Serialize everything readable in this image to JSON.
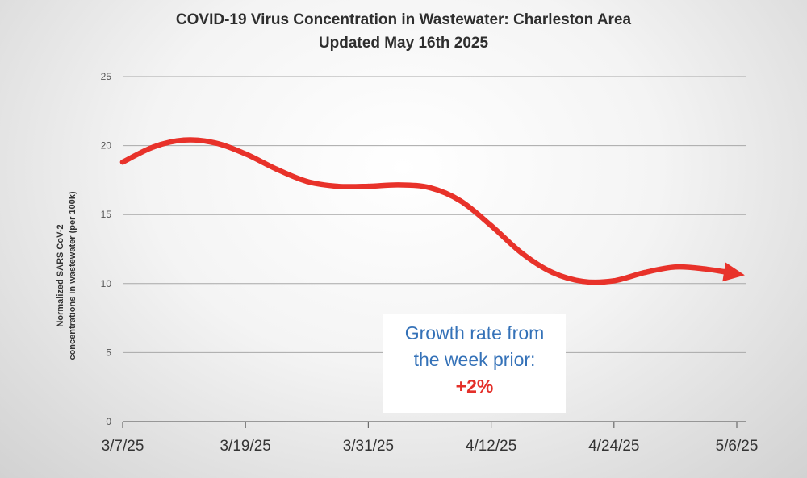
{
  "chart_data": {
    "type": "line",
    "title": "COVID-19 Virus Concentration in Wastewater: Charleston Area",
    "subtitle": "Updated May 16th 2025",
    "ylabel_line1": "Normalized SARS CoV-2",
    "ylabel_line2": "concentrations in wastewater (per 100k)",
    "xlabel": "",
    "ylim": [
      0,
      25
    ],
    "y_ticks": [
      0,
      5,
      10,
      15,
      20,
      25
    ],
    "x_ticks": [
      {
        "label": "3/7/25",
        "day": 0
      },
      {
        "label": "3/19/25",
        "day": 12
      },
      {
        "label": "3/31/25",
        "day": 24
      },
      {
        "label": "4/12/25",
        "day": 36
      },
      {
        "label": "4/24/25",
        "day": 48
      },
      {
        "label": "5/6/25",
        "day": 60
      }
    ],
    "xlim_days": [
      0,
      60
    ],
    "grid": true,
    "series": [
      {
        "name": "Normalized SARS CoV-2 concentration",
        "color": "#e8322a",
        "points": [
          {
            "day": 0,
            "value": 18.8
          },
          {
            "day": 3,
            "value": 19.9
          },
          {
            "day": 6,
            "value": 20.4
          },
          {
            "day": 9,
            "value": 20.2
          },
          {
            "day": 12,
            "value": 19.4
          },
          {
            "day": 15,
            "value": 18.3
          },
          {
            "day": 18,
            "value": 17.4
          },
          {
            "day": 21,
            "value": 17.05
          },
          {
            "day": 24,
            "value": 17.05
          },
          {
            "day": 27,
            "value": 17.15
          },
          {
            "day": 30,
            "value": 16.95
          },
          {
            "day": 33,
            "value": 16.0
          },
          {
            "day": 36,
            "value": 14.2
          },
          {
            "day": 39,
            "value": 12.2
          },
          {
            "day": 42,
            "value": 10.8
          },
          {
            "day": 45,
            "value": 10.15
          },
          {
            "day": 48,
            "value": 10.2
          },
          {
            "day": 51,
            "value": 10.8
          },
          {
            "day": 54,
            "value": 11.2
          },
          {
            "day": 57,
            "value": 11.05
          },
          {
            "day": 60,
            "value": 10.7
          }
        ]
      }
    ]
  },
  "annotation": {
    "line1": "Growth rate from",
    "line2": "the week prior:",
    "value": "+2%"
  }
}
